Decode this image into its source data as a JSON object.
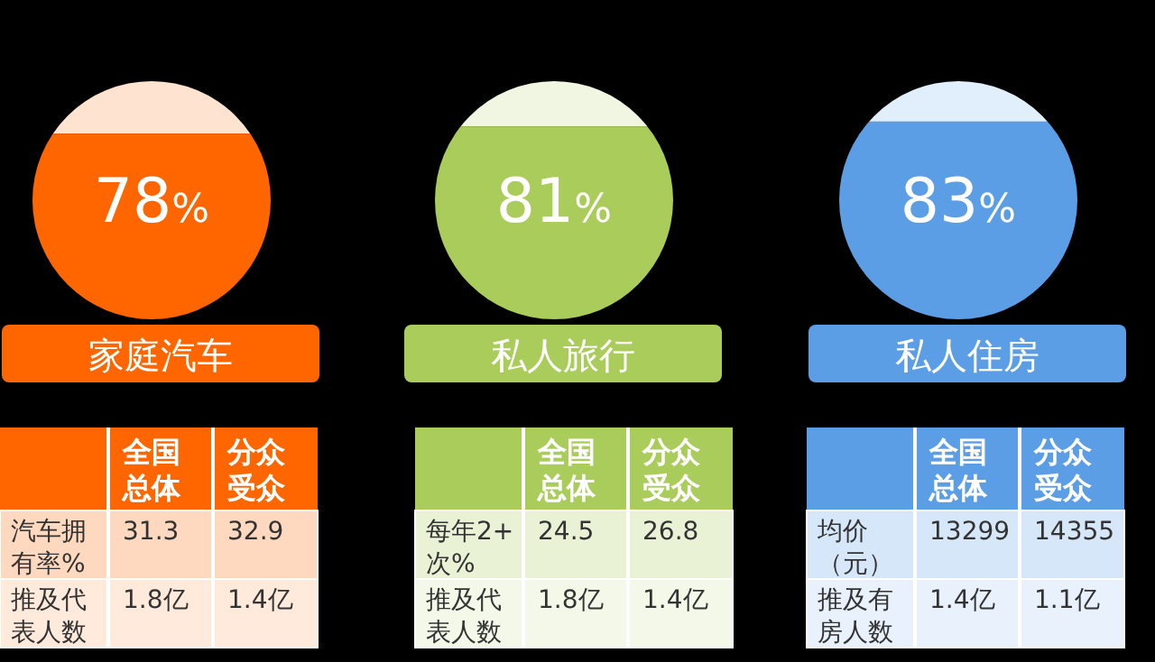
{
  "chart_data": [
    {
      "type": "other",
      "title": "家庭汽车",
      "values": [
        78
      ],
      "value_labels": [
        "78%"
      ],
      "color": "#ff6600"
    },
    {
      "type": "other",
      "title": "私人旅行",
      "values": [
        81
      ],
      "value_labels": [
        "81%"
      ],
      "color": "#a9cc5a"
    },
    {
      "type": "other",
      "title": "私人住房",
      "values": [
        83
      ],
      "value_labels": [
        "83%"
      ],
      "color": "#5b9ee6"
    },
    {
      "type": "other",
      "categories": [
        "全国总体",
        "分众受众"
      ],
      "y_categories": [
        "汽车拥有率%",
        "推及代表人数"
      ],
      "cell_labels": [
        [
          "31.3",
          "32.9"
        ],
        [
          "1.8亿",
          "1.4亿"
        ]
      ],
      "color": "#ff6600"
    },
    {
      "type": "other",
      "categories": [
        "全国总体",
        "分众受众"
      ],
      "y_categories": [
        "每年2+次%",
        "推及代表人数"
      ],
      "cell_labels": [
        [
          "24.5",
          "26.8"
        ],
        [
          "1.8亿",
          "1.4亿"
        ]
      ],
      "color": "#a9cc5a"
    },
    {
      "type": "other",
      "categories": [
        "全国总体",
        "分众受众"
      ],
      "y_categories": [
        "均价（元）",
        "推及有房人数"
      ],
      "cell_labels": [
        [
          "13299",
          "14355"
        ],
        [
          "1.4亿",
          "1.1亿"
        ]
      ],
      "color": "#5b9ee6"
    }
  ]
}
